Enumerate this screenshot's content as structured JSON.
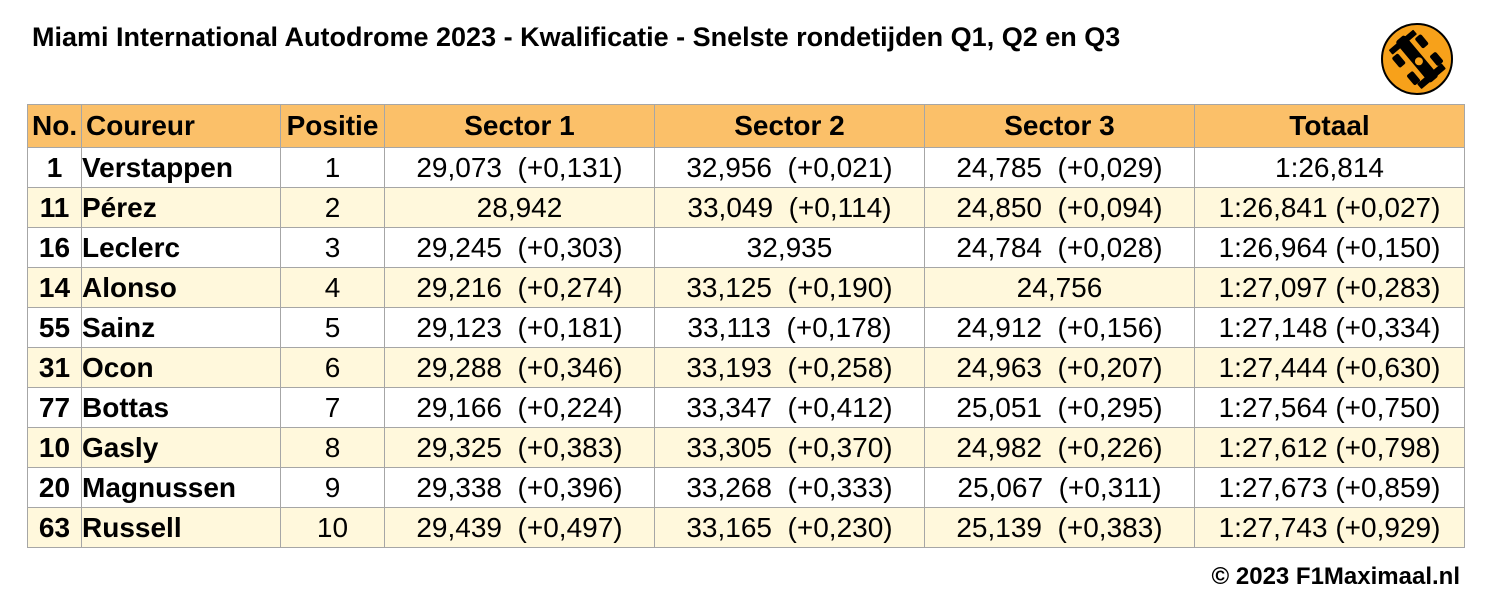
{
  "title": "Miami International Autodrome 2023 - Kwalificatie - Snelste rondetijden Q1, Q2 en Q3",
  "logo": {
    "icon": "race-car-icon",
    "color": "#f7a11a"
  },
  "table": {
    "headers": [
      "No.",
      "Coureur",
      "Positie",
      "Sector 1",
      "Sector 2",
      "Sector 3",
      "Totaal"
    ],
    "rows": [
      [
        "1",
        "Verstappen",
        "1",
        "29,073  (+0,131)",
        "32,956  (+0,021)",
        "24,785  (+0,029)",
        "1:26,814"
      ],
      [
        "11",
        "Pérez",
        "2",
        "28,942",
        "33,049  (+0,114)",
        "24,850  (+0,094)",
        "1:26,841 (+0,027)"
      ],
      [
        "16",
        "Leclerc",
        "3",
        "29,245  (+0,303)",
        "32,935",
        "24,784  (+0,028)",
        "1:26,964 (+0,150)"
      ],
      [
        "14",
        "Alonso",
        "4",
        "29,216  (+0,274)",
        "33,125  (+0,190)",
        "24,756",
        "1:27,097 (+0,283)"
      ],
      [
        "55",
        "Sainz",
        "5",
        "29,123  (+0,181)",
        "33,113  (+0,178)",
        "24,912  (+0,156)",
        "1:27,148 (+0,334)"
      ],
      [
        "31",
        "Ocon",
        "6",
        "29,288  (+0,346)",
        "33,193  (+0,258)",
        "24,963  (+0,207)",
        "1:27,444 (+0,630)"
      ],
      [
        "77",
        "Bottas",
        "7",
        "29,166  (+0,224)",
        "33,347  (+0,412)",
        "25,051  (+0,295)",
        "1:27,564 (+0,750)"
      ],
      [
        "10",
        "Gasly",
        "8",
        "29,325  (+0,383)",
        "33,305  (+0,370)",
        "24,982  (+0,226)",
        "1:27,612 (+0,798)"
      ],
      [
        "20",
        "Magnussen",
        "9",
        "29,338  (+0,396)",
        "33,268  (+0,333)",
        "25,067  (+0,311)",
        "1:27,673 (+0,859)"
      ],
      [
        "63",
        "Russell",
        "10",
        "29,439  (+0,497)",
        "33,165  (+0,230)",
        "25,139  (+0,383)",
        "1:27,743 (+0,929)"
      ]
    ]
  },
  "copyright": "© 2023 F1Maximaal.nl"
}
